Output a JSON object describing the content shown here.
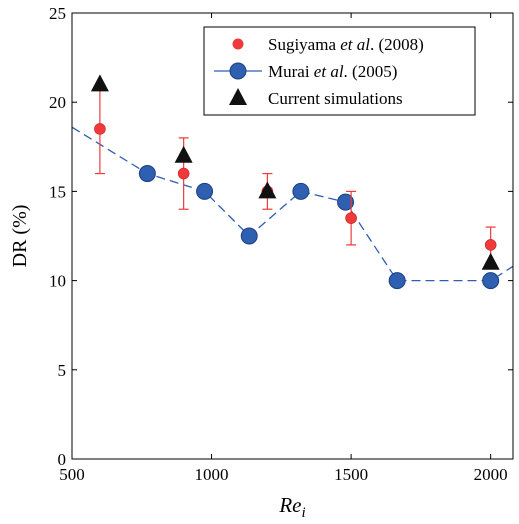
{
  "chart_data": {
    "type": "scatter",
    "xlabel": "Re",
    "xlabel_subscript": "i",
    "ylabel": "DR (%)",
    "xlim": [
      500,
      2080
    ],
    "ylim": [
      0,
      25
    ],
    "xticks": [
      500,
      1000,
      1500,
      2000
    ],
    "yticks": [
      0,
      5,
      10,
      15,
      20,
      25
    ],
    "grid": false,
    "legend_position": "top-right",
    "series": [
      {
        "key": "sugiyama",
        "name_parts": [
          "Sugiyama ",
          "et al",
          ". (2008)"
        ],
        "marker": "circle-with-errorbars",
        "color": "#ee3a3a",
        "points": [
          {
            "x": 600,
            "y": 18.5,
            "lo": 16.0,
            "hi": 21.0
          },
          {
            "x": 900,
            "y": 16.0,
            "lo": 14.0,
            "hi": 18.0
          },
          {
            "x": 1200,
            "y": 15.0,
            "lo": 14.0,
            "hi": 16.0
          },
          {
            "x": 1500,
            "y": 13.5,
            "lo": 12.0,
            "hi": 15.0
          },
          {
            "x": 2000,
            "y": 12.0,
            "lo": 11.0,
            "hi": 13.0
          }
        ]
      },
      {
        "key": "murai",
        "name_parts": [
          "Murai ",
          "et al",
          ". (2005)"
        ],
        "marker": "circle-dashed-line",
        "color": "#2f5fb0",
        "line": [
          {
            "x": 500,
            "y": 18.6
          },
          {
            "x": 770,
            "y": 16.0
          },
          {
            "x": 975,
            "y": 15.0
          },
          {
            "x": 1135,
            "y": 12.5
          },
          {
            "x": 1320,
            "y": 15.0
          },
          {
            "x": 1480,
            "y": 14.4
          },
          {
            "x": 1665,
            "y": 10.0
          },
          {
            "x": 2000,
            "y": 10.0
          },
          {
            "x": 2080,
            "y": 10.8
          }
        ],
        "points": [
          {
            "x": 770,
            "y": 16.0
          },
          {
            "x": 975,
            "y": 15.0
          },
          {
            "x": 1135,
            "y": 12.5
          },
          {
            "x": 1320,
            "y": 15.0
          },
          {
            "x": 1480,
            "y": 14.4
          },
          {
            "x": 1665,
            "y": 10.0
          },
          {
            "x": 2000,
            "y": 10.0
          }
        ]
      },
      {
        "key": "current",
        "name_parts": [
          "Current simulations"
        ],
        "marker": "triangle",
        "color": "#111111",
        "points": [
          {
            "x": 600,
            "y": 21.0
          },
          {
            "x": 900,
            "y": 17.0
          },
          {
            "x": 1200,
            "y": 15.0
          },
          {
            "x": 2000,
            "y": 11.0
          }
        ]
      }
    ]
  }
}
